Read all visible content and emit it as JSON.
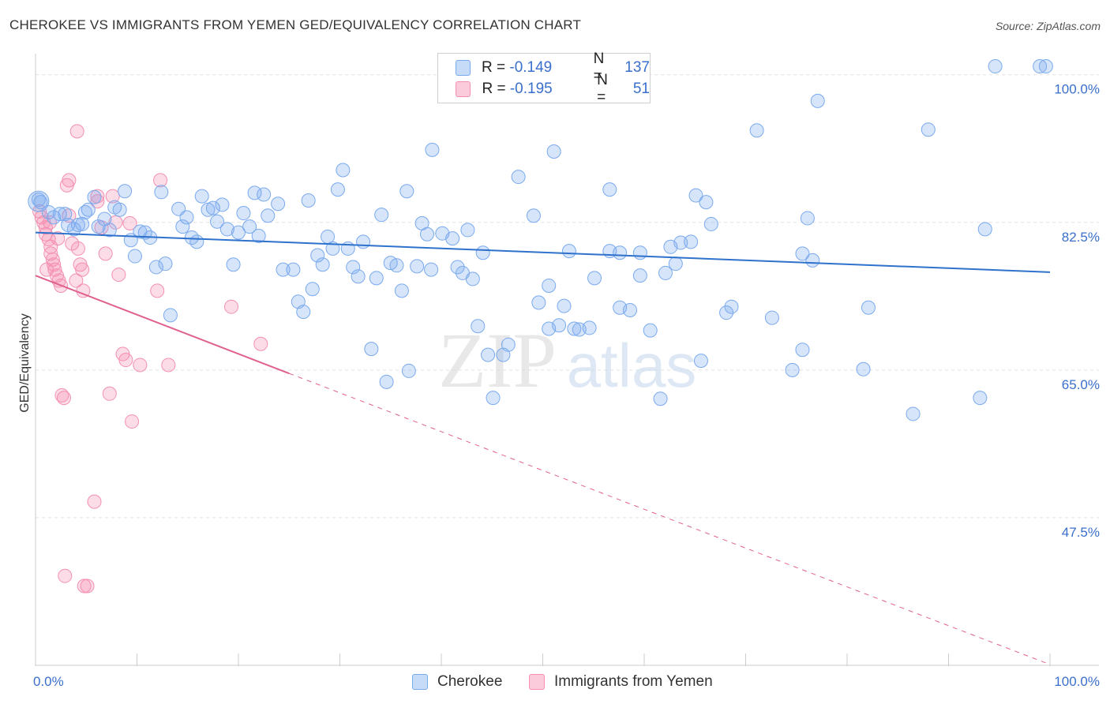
{
  "title": "CHEROKEE VS IMMIGRANTS FROM YEMEN GED/EQUIVALENCY CORRELATION CHART",
  "source": "Source: ZipAtlas.com",
  "watermark": {
    "zip": "ZIP",
    "atlas": "atlas"
  },
  "legend": {
    "items": [
      {
        "r_label": "R =",
        "r_value": "-0.149",
        "n_label": "N =",
        "n_value": "137",
        "color": "#7aaaee"
      },
      {
        "r_label": "R =",
        "r_value": "-0.195",
        "n_label": "N =",
        "n_value": " 51",
        "color": "#f48fb1"
      }
    ]
  },
  "bottom_legend": {
    "cherokee": "Cherokee",
    "yemen": "Immigrants from Yemen"
  },
  "chart_data": {
    "type": "scatter",
    "ylabel": "GED/Equivalency",
    "xlim": [
      0,
      100
    ],
    "ylim": [
      30,
      102.5
    ],
    "x_tick_labels": [
      "0.0%",
      "100.0%"
    ],
    "y_tick_labels": [
      {
        "value": 100,
        "label": "100.0%"
      },
      {
        "value": 82.5,
        "label": "82.5%"
      },
      {
        "value": 65,
        "label": "65.0%"
      },
      {
        "value": 47.5,
        "label": "47.5%"
      }
    ],
    "colors": {
      "cherokee": "#7aaaee",
      "yemen": "#f48fb1",
      "cherokee_line": "#2f72cc",
      "yemen_line": "#e0608f"
    },
    "series": [
      {
        "name": "Cherokee",
        "trend": {
          "x": [
            0,
            100
          ],
          "y": [
            81.3,
            76.6
          ]
        },
        "points": [
          [
            0.3,
            85.2
          ],
          [
            0.5,
            84.9
          ],
          [
            1.3,
            83.7
          ],
          [
            1.8,
            83.1
          ],
          [
            2.4,
            83.5
          ],
          [
            2.9,
            83.5
          ],
          [
            3.2,
            82.2
          ],
          [
            3.8,
            81.7
          ],
          [
            4.2,
            82.2
          ],
          [
            4.6,
            82.3
          ],
          [
            4.9,
            83.7
          ],
          [
            5.2,
            84.0
          ],
          [
            5.8,
            85.5
          ],
          [
            6.2,
            82.0
          ],
          [
            6.8,
            82.9
          ],
          [
            7.3,
            81.6
          ],
          [
            7.8,
            84.3
          ],
          [
            8.3,
            84.0
          ],
          [
            8.8,
            86.2
          ],
          [
            9.4,
            80.4
          ],
          [
            9.8,
            78.5
          ],
          [
            10.3,
            81.4
          ],
          [
            10.8,
            81.3
          ],
          [
            11.3,
            80.7
          ],
          [
            11.9,
            77.2
          ],
          [
            12.4,
            86.1
          ],
          [
            12.8,
            77.6
          ],
          [
            13.3,
            71.5
          ],
          [
            14.1,
            84.1
          ],
          [
            14.5,
            82.0
          ],
          [
            14.9,
            83.1
          ],
          [
            15.4,
            80.7
          ],
          [
            15.9,
            80.2
          ],
          [
            16.4,
            85.6
          ],
          [
            17.0,
            84.0
          ],
          [
            17.5,
            84.2
          ],
          [
            17.9,
            82.6
          ],
          [
            18.4,
            84.6
          ],
          [
            18.9,
            81.7
          ],
          [
            19.5,
            77.5
          ],
          [
            20.0,
            81.3
          ],
          [
            20.5,
            83.6
          ],
          [
            21.1,
            82.0
          ],
          [
            21.6,
            86.0
          ],
          [
            22.0,
            80.9
          ],
          [
            22.5,
            85.8
          ],
          [
            22.9,
            83.3
          ],
          [
            23.9,
            84.7
          ],
          [
            24.4,
            76.9
          ],
          [
            25.4,
            76.9
          ],
          [
            25.9,
            73.1
          ],
          [
            26.4,
            71.9
          ],
          [
            26.9,
            85.1
          ],
          [
            27.3,
            74.6
          ],
          [
            27.8,
            78.6
          ],
          [
            28.3,
            77.5
          ],
          [
            28.8,
            80.8
          ],
          [
            29.3,
            79.4
          ],
          [
            29.8,
            86.4
          ],
          [
            30.3,
            88.7
          ],
          [
            30.8,
            79.4
          ],
          [
            31.3,
            77.2
          ],
          [
            31.8,
            76.1
          ],
          [
            32.3,
            80.2
          ],
          [
            33.1,
            67.5
          ],
          [
            33.6,
            75.9
          ],
          [
            34.1,
            83.4
          ],
          [
            34.6,
            63.6
          ],
          [
            35.0,
            77.7
          ],
          [
            35.6,
            77.4
          ],
          [
            36.1,
            74.4
          ],
          [
            36.6,
            86.2
          ],
          [
            36.8,
            64.9
          ],
          [
            37.6,
            77.3
          ],
          [
            38.1,
            82.4
          ],
          [
            38.6,
            81.1
          ],
          [
            39.0,
            76.9
          ],
          [
            39.1,
            91.1
          ],
          [
            40.1,
            81.2
          ],
          [
            41.1,
            80.6
          ],
          [
            41.6,
            77.2
          ],
          [
            42.1,
            76.5
          ],
          [
            42.6,
            81.6
          ],
          [
            43.1,
            75.8
          ],
          [
            43.6,
            70.2
          ],
          [
            44.1,
            78.9
          ],
          [
            44.6,
            66.8
          ],
          [
            45.1,
            61.7
          ],
          [
            46.1,
            66.8
          ],
          [
            46.6,
            68.0
          ],
          [
            47.6,
            87.9
          ],
          [
            49.1,
            83.3
          ],
          [
            49.6,
            73.0
          ],
          [
            50.6,
            75.0
          ],
          [
            50.6,
            69.9
          ],
          [
            51.1,
            90.9
          ],
          [
            51.6,
            70.3
          ],
          [
            52.1,
            72.6
          ],
          [
            52.6,
            79.1
          ],
          [
            53.1,
            69.9
          ],
          [
            53.6,
            69.8
          ],
          [
            54.6,
            70.0
          ],
          [
            55.1,
            75.9
          ],
          [
            56.6,
            79.1
          ],
          [
            56.6,
            86.4
          ],
          [
            57.6,
            78.9
          ],
          [
            57.6,
            72.4
          ],
          [
            58.6,
            72.1
          ],
          [
            59.6,
            78.9
          ],
          [
            59.6,
            76.2
          ],
          [
            60.6,
            69.7
          ],
          [
            61.6,
            61.6
          ],
          [
            62.1,
            76.5
          ],
          [
            62.6,
            79.6
          ],
          [
            63.1,
            77.6
          ],
          [
            63.6,
            80.1
          ],
          [
            64.6,
            80.2
          ],
          [
            65.1,
            85.7
          ],
          [
            65.6,
            66.1
          ],
          [
            66.1,
            84.9
          ],
          [
            66.6,
            82.3
          ],
          [
            68.1,
            71.8
          ],
          [
            68.6,
            72.5
          ],
          [
            71.1,
            93.4
          ],
          [
            72.6,
            71.2
          ],
          [
            74.6,
            65.0
          ],
          [
            75.6,
            78.8
          ],
          [
            75.6,
            67.4
          ],
          [
            76.1,
            83.0
          ],
          [
            76.6,
            78.0
          ],
          [
            77.1,
            96.9
          ],
          [
            81.6,
            65.1
          ],
          [
            82.1,
            72.4
          ],
          [
            86.5,
            59.8
          ],
          [
            88.0,
            93.5
          ],
          [
            93.1,
            61.7
          ],
          [
            93.6,
            81.7
          ],
          [
            94.6,
            101.0
          ],
          [
            99.0,
            101.0
          ],
          [
            99.6,
            101.0
          ]
        ]
      },
      {
        "name": "Immigrants from Yemen",
        "trend": {
          "x": [
            0,
            25
          ],
          "y": [
            76.2,
            64.6
          ],
          "dashed_to": {
            "x": 100,
            "y": 30.1
          }
        },
        "points": [
          [
            0.4,
            83.8
          ],
          [
            0.6,
            83.1
          ],
          [
            0.8,
            82.5
          ],
          [
            1.0,
            81.9
          ],
          [
            1.0,
            81.1
          ],
          [
            1.3,
            80.5
          ],
          [
            1.5,
            79.6
          ],
          [
            1.5,
            78.8
          ],
          [
            1.7,
            78.1
          ],
          [
            1.8,
            77.5
          ],
          [
            1.9,
            76.9
          ],
          [
            2.1,
            76.2
          ],
          [
            2.3,
            75.6
          ],
          [
            2.5,
            75.0
          ],
          [
            2.6,
            62.0
          ],
          [
            2.8,
            61.7
          ],
          [
            2.9,
            40.6
          ],
          [
            3.1,
            86.9
          ],
          [
            3.3,
            83.3
          ],
          [
            3.6,
            80.0
          ],
          [
            4.0,
            75.6
          ],
          [
            4.1,
            93.3
          ],
          [
            4.2,
            79.4
          ],
          [
            4.4,
            77.5
          ],
          [
            4.6,
            76.9
          ],
          [
            4.7,
            74.4
          ],
          [
            4.8,
            39.4
          ],
          [
            5.1,
            39.4
          ],
          [
            5.8,
            49.4
          ],
          [
            6.1,
            85.0
          ],
          [
            6.5,
            81.9
          ],
          [
            6.9,
            78.8
          ],
          [
            7.3,
            62.2
          ],
          [
            7.6,
            85.6
          ],
          [
            7.9,
            82.5
          ],
          [
            8.2,
            76.3
          ],
          [
            8.6,
            66.9
          ],
          [
            8.9,
            66.2
          ],
          [
            9.3,
            82.4
          ],
          [
            9.5,
            58.9
          ],
          [
            10.3,
            65.6
          ],
          [
            12.0,
            74.4
          ],
          [
            12.3,
            87.5
          ],
          [
            13.1,
            65.6
          ],
          [
            19.3,
            72.5
          ],
          [
            22.2,
            68.1
          ],
          [
            3.3,
            87.5
          ],
          [
            6.1,
            85.6
          ],
          [
            1.1,
            76.9
          ],
          [
            2.2,
            80.6
          ],
          [
            1.4,
            82.5
          ]
        ]
      }
    ]
  }
}
